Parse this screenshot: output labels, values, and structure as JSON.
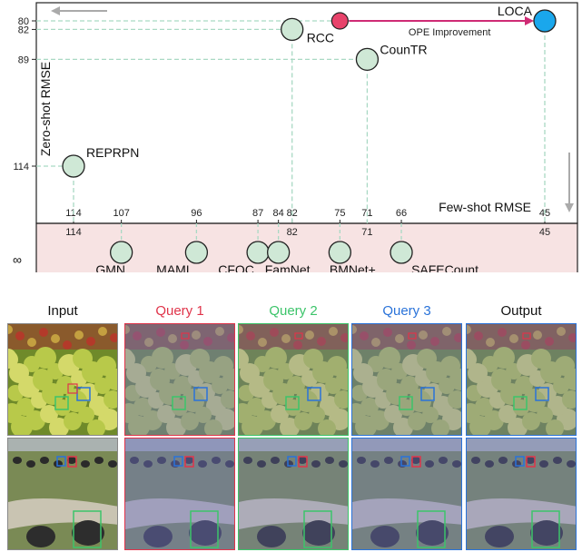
{
  "chart_data": {
    "type": "scatter",
    "xlabel": "Few-shot RMSE",
    "ylabel": "Zero-shot RMSE",
    "infinity_label": "∞",
    "y_ticks": [
      80,
      82,
      89,
      114
    ],
    "x_ticks": [
      114,
      107,
      96,
      87,
      84,
      82,
      75,
      71,
      66,
      45
    ],
    "x_tick_labels_top": [
      "114",
      "107",
      "96",
      "87",
      "84",
      "82",
      "75",
      "71",
      "66",
      "45"
    ],
    "x_tick_labels_bottom": [
      "114",
      "82",
      "71",
      "45"
    ],
    "zero_shot_points": [
      {
        "name": "REPRPN",
        "x": 114,
        "y": 114
      },
      {
        "name": "RCC",
        "x": 82,
        "y": 82
      },
      {
        "name": "CounTR",
        "x": 71,
        "y": 89
      },
      {
        "name": "LOCA",
        "x": 45,
        "y": 80
      }
    ],
    "few_shot_only_points": [
      {
        "name": "GMN",
        "x": 107
      },
      {
        "name": "MAML",
        "x": 96
      },
      {
        "name": "CFOC",
        "x": 87
      },
      {
        "name": "FamNet",
        "x": 84
      },
      {
        "name": "BMNet+",
        "x": 75
      },
      {
        "name": "SAFECount",
        "x": 66
      }
    ],
    "ope_point": {
      "x": 75,
      "y": 80
    },
    "annotation": "OPE Improvement",
    "colors": {
      "point_fill": "#cfe8d6",
      "loca_fill": "#1aa7ec",
      "ope_fill": "#e8436b",
      "arrow": "#cf2b74",
      "guide": "#a9d9c4",
      "band_fill": "#f7e3e3"
    }
  },
  "image_grid": {
    "columns": [
      {
        "label": "Input",
        "color": "#111111"
      },
      {
        "label": "Query 1",
        "color": "#e0344a"
      },
      {
        "label": "Query 2",
        "color": "#3cc46a"
      },
      {
        "label": "Query 3",
        "color": "#2a73d9"
      },
      {
        "label": "Output",
        "color": "#111111"
      }
    ]
  }
}
